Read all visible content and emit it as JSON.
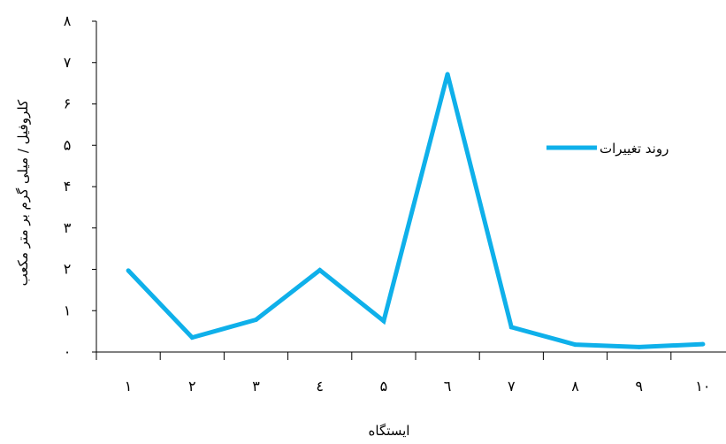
{
  "chart_data": {
    "type": "line",
    "title": "",
    "xlabel": "ایستگاه",
    "ylabel": "کلروفیل / میلی گرم بر متر مکعب",
    "categories": [
      "۱",
      "۲",
      "۳",
      "٤",
      "۵",
      "٦",
      "۷",
      "۸",
      "۹",
      "۱۰"
    ],
    "y_ticks": [
      "۰",
      "۱",
      "۲",
      "۳",
      "۴",
      "۵",
      "۶",
      "۷",
      "۸"
    ],
    "ylim": [
      0,
      8
    ],
    "series": [
      {
        "name": "روند تغییرات",
        "values": [
          1.97,
          0.35,
          0.78,
          1.98,
          0.75,
          6.72,
          0.6,
          0.18,
          0.12,
          0.19
        ],
        "color": "#0fb0ea"
      }
    ],
    "grid": false,
    "legend_position": "right"
  }
}
